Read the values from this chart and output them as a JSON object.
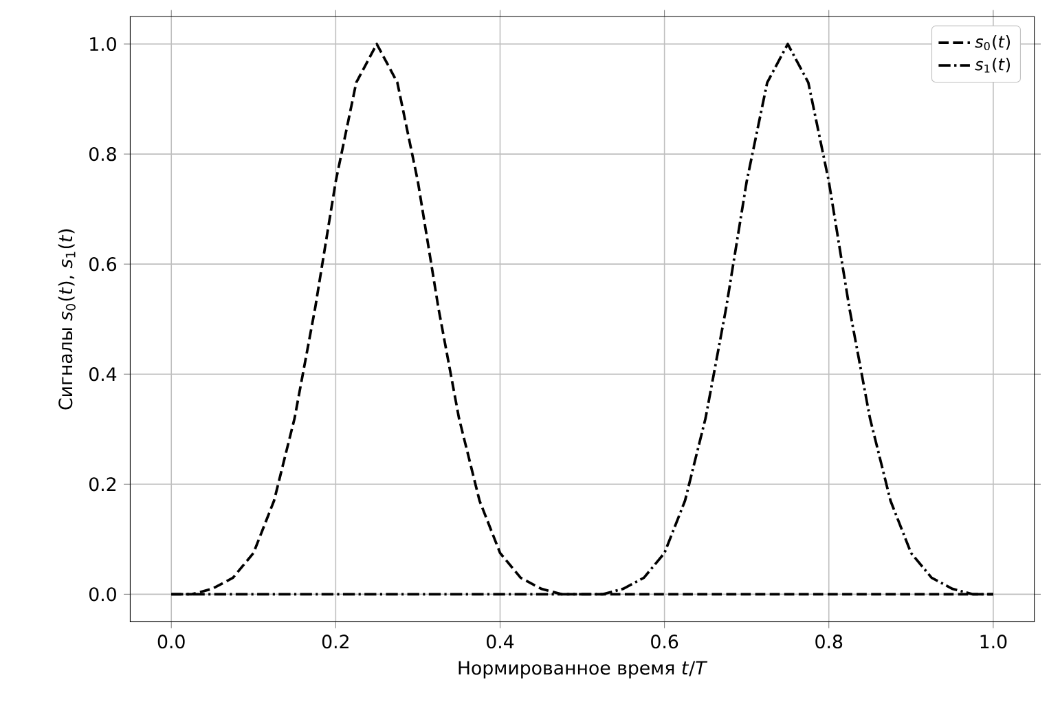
{
  "chart_data": {
    "type": "line",
    "xlabel": "Нормированное время *t*/*T*",
    "ylabel": "Сигналы *s*$_{0}$(*t*), *s*$_{1}$(*t*)",
    "x": [
      0,
      0.025,
      0.05,
      0.075,
      0.1,
      0.125,
      0.15,
      0.175,
      0.2,
      0.225,
      0.25,
      0.275,
      0.3,
      0.325,
      0.35,
      0.375,
      0.4,
      0.425,
      0.45,
      0.475,
      0.5,
      0.525,
      0.55,
      0.575,
      0.6,
      0.625,
      0.65,
      0.675,
      0.7,
      0.725,
      0.75,
      0.775,
      0.8,
      0.825,
      0.85,
      0.875,
      0.9,
      0.925,
      0.95,
      0.975,
      1.0
    ],
    "series": [
      {
        "name": "*s*$_{0}$(*t*)",
        "color": "#000000",
        "line_style": "dashed",
        "values": [
          0,
          0,
          0.01,
          0.03,
          0.075,
          0.17,
          0.32,
          0.52,
          0.75,
          0.93,
          1,
          0.93,
          0.75,
          0.52,
          0.32,
          0.17,
          0.075,
          0.03,
          0.01,
          0,
          0,
          0,
          0,
          0,
          0,
          0,
          0,
          0,
          0,
          0,
          0,
          0,
          0,
          0,
          0,
          0,
          0,
          0,
          0,
          0,
          0
        ]
      },
      {
        "name": "*s*$_{1}$(*t*)",
        "color": "#000000",
        "line_style": "dashdot",
        "values": [
          0,
          0,
          0,
          0,
          0,
          0,
          0,
          0,
          0,
          0,
          0,
          0,
          0,
          0,
          0,
          0,
          0,
          0,
          0,
          0,
          0,
          0,
          0.01,
          0.03,
          0.075,
          0.17,
          0.32,
          0.52,
          0.75,
          0.93,
          1,
          0.93,
          0.75,
          0.52,
          0.32,
          0.17,
          0.075,
          0.03,
          0.01,
          0,
          0
        ]
      }
    ],
    "xlim": [
      -0.05,
      1.05
    ],
    "ylim": [
      -0.05,
      1.05
    ],
    "xticks": [
      {
        "value": 0,
        "label": "0.0"
      },
      0.2,
      0.4,
      0.6,
      0.8,
      {
        "value": 1,
        "label": "1.0"
      }
    ],
    "yticks": [
      {
        "value": 0,
        "label": "0.0"
      },
      0.2,
      0.4,
      0.6,
      0.8,
      {
        "value": 1,
        "label": "1.0"
      }
    ],
    "grid": true,
    "legend": "top right",
    "marker": "none"
  }
}
